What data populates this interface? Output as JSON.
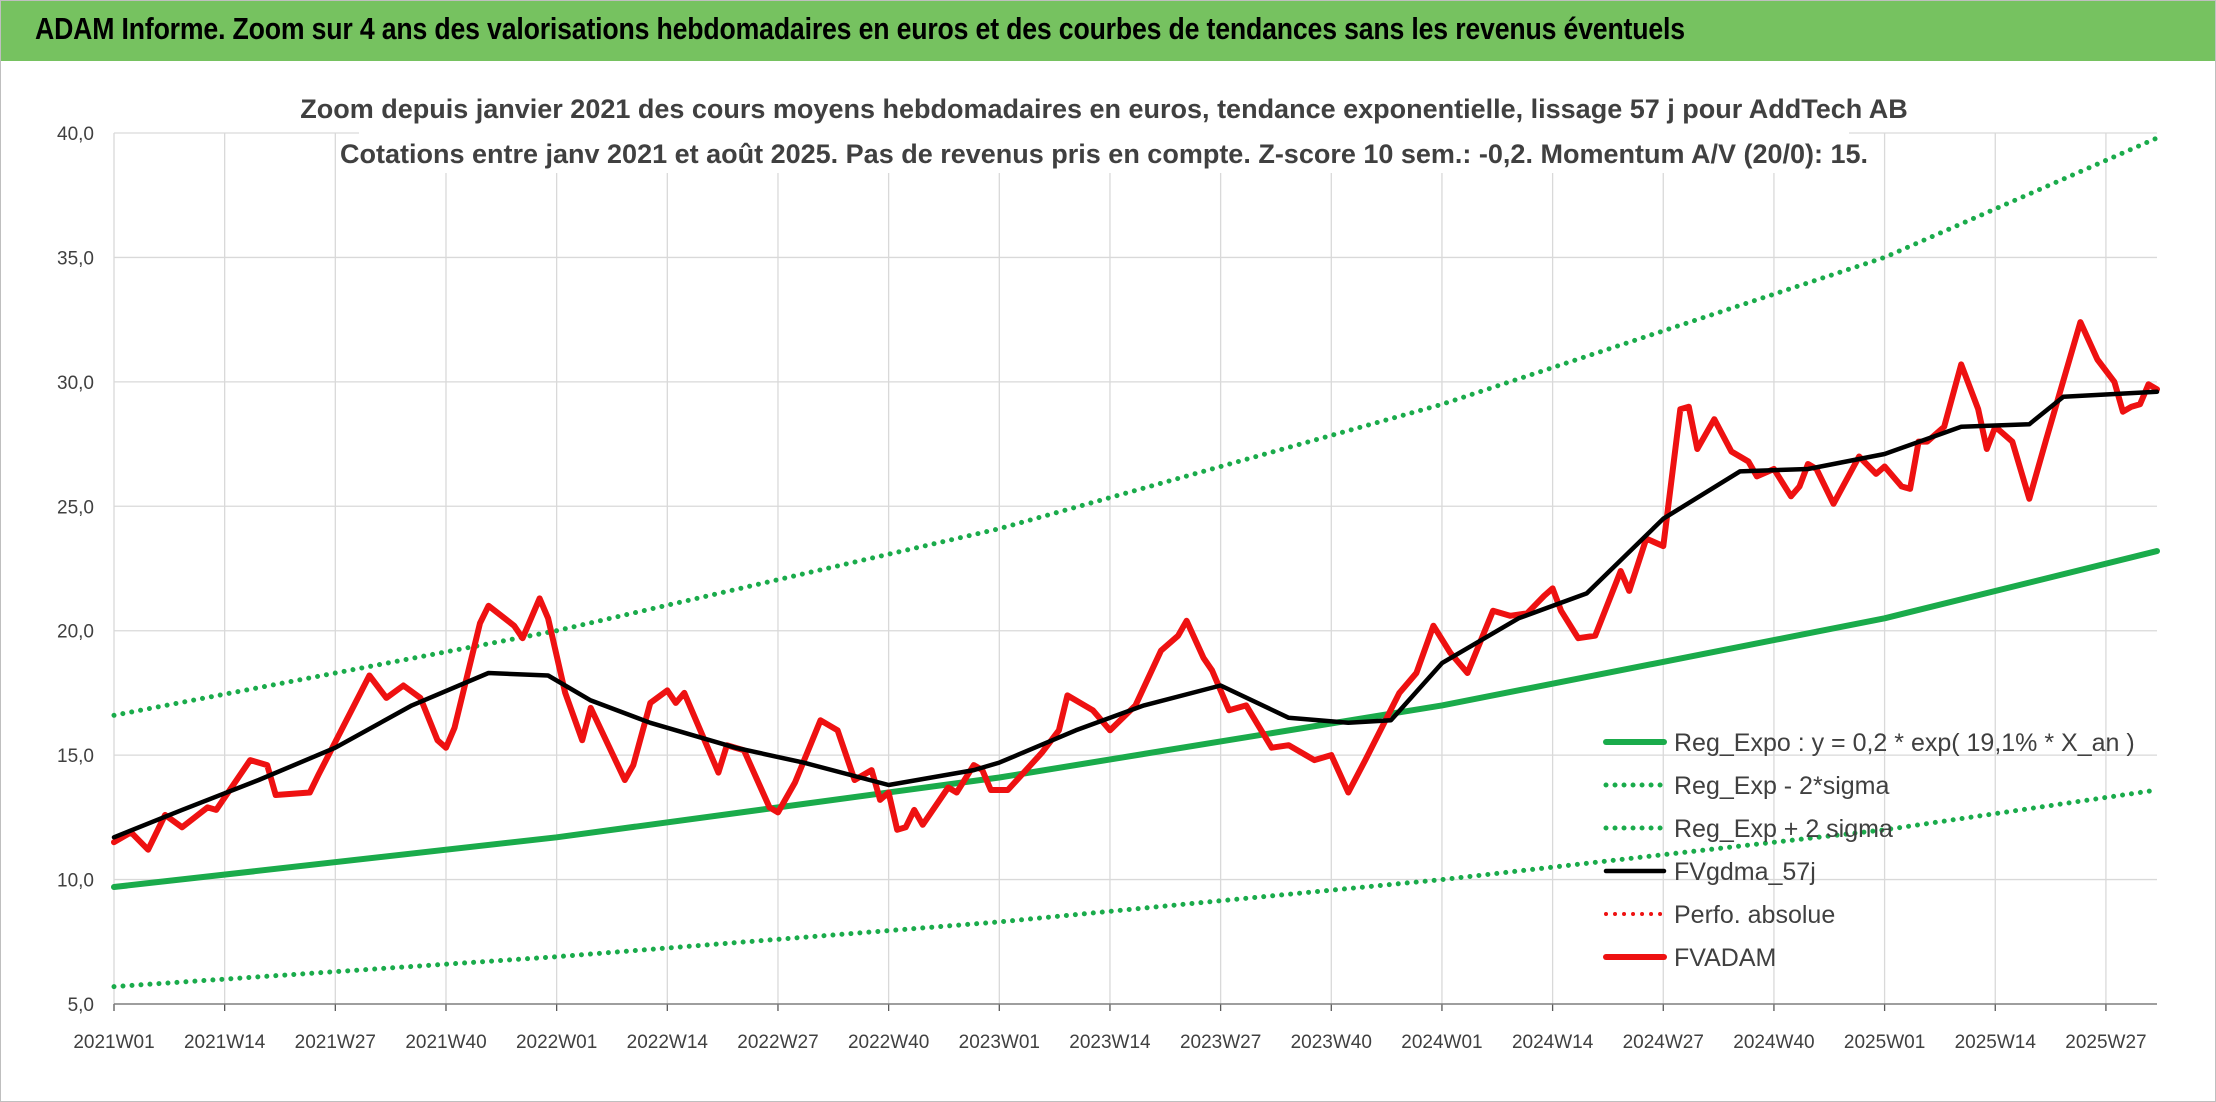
{
  "header": {
    "title": "ADAM Informe. Zoom sur 4 ans des valorisations hebdomadaires en euros et des courbes de tendances sans les revenus éventuels"
  },
  "colors": {
    "banner": "#76c260",
    "trend_green": "#1aab4b",
    "price_red": "#ee1111",
    "average_black": "#000000",
    "grid": "#d9d9d9"
  },
  "chart_data": {
    "type": "line",
    "title": "Zoom depuis janvier 2021 des cours moyens hebdomadaires en euros, tendance exponentielle, lissage 57 j pour AddTech AB",
    "subtitle": "Cotations entre janv 2021 et août 2025. Pas de revenus pris en compte. Z-score 10 sem.: -0,2. Momentum A/V (20/0): 15.",
    "xlabel": "",
    "ylabel": "",
    "ylim": [
      5,
      40
    ],
    "yticks": [
      "5,0",
      "10,0",
      "15,0",
      "20,0",
      "25,0",
      "30,0",
      "35,0",
      "40,0"
    ],
    "ytick_values": [
      5,
      10,
      15,
      20,
      25,
      30,
      35,
      40
    ],
    "xticks": [
      "2021W01",
      "2021W14",
      "2021W27",
      "2021W40",
      "2022W01",
      "2022W14",
      "2022W27",
      "2022W40",
      "2023W01",
      "2023W14",
      "2023W27",
      "2023W40",
      "2024W01",
      "2024W14",
      "2024W27",
      "2024W40",
      "2025W01",
      "2025W14",
      "2025W27"
    ],
    "x_first": "2021W01",
    "x_last": "2025W33",
    "grid": true,
    "legend_position": "bottom-right",
    "series": [
      {
        "name": "Reg_Expo : y = 0,2 * exp( 19,1% *  X_an )",
        "style": "solid",
        "color": "#1aab4b",
        "points": [
          [
            "2021W01",
            9.7
          ],
          [
            "2022W01",
            11.7
          ],
          [
            "2023W01",
            14.1
          ],
          [
            "2024W01",
            17.0
          ],
          [
            "2025W01",
            20.5
          ],
          [
            "2025W33",
            23.2
          ]
        ]
      },
      {
        "name": "Reg_Exp - 2*sigma",
        "style": "dotted",
        "color": "#1aab4b",
        "points": [
          [
            "2021W01",
            5.7
          ],
          [
            "2022W01",
            6.9
          ],
          [
            "2023W01",
            8.3
          ],
          [
            "2024W01",
            10.0
          ],
          [
            "2025W01",
            12.0
          ],
          [
            "2025W33",
            13.6
          ]
        ]
      },
      {
        "name": "Reg_Exp + 2 sigma",
        "style": "dotted",
        "color": "#1aab4b",
        "points": [
          [
            "2021W01",
            16.6
          ],
          [
            "2022W01",
            20.0
          ],
          [
            "2023W01",
            24.1
          ],
          [
            "2024W01",
            29.1
          ],
          [
            "2025W01",
            35.0
          ],
          [
            "2025W33",
            39.8
          ]
        ]
      },
      {
        "name": "FVgdma_57j",
        "style": "solid",
        "color": "#000000",
        "points": [
          [
            "2021W01",
            11.7
          ],
          [
            "2021W09",
            12.8
          ],
          [
            "2021W18",
            14.0
          ],
          [
            "2021W27",
            15.3
          ],
          [
            "2021W36",
            17.0
          ],
          [
            "2021W45",
            18.3
          ],
          [
            "2021W52",
            18.2
          ],
          [
            "2022W05",
            17.2
          ],
          [
            "2022W12",
            16.3
          ],
          [
            "2022W22",
            15.3
          ],
          [
            "2022W30",
            14.7
          ],
          [
            "2022W40",
            13.8
          ],
          [
            "2022W50",
            14.4
          ],
          [
            "2023W01",
            14.7
          ],
          [
            "2023W10",
            16.0
          ],
          [
            "2023W18",
            17.0
          ],
          [
            "2023W27",
            17.8
          ],
          [
            "2023W35",
            16.5
          ],
          [
            "2023W42",
            16.3
          ],
          [
            "2023W47",
            16.4
          ],
          [
            "2024W01",
            18.7
          ],
          [
            "2024W10",
            20.5
          ],
          [
            "2024W18",
            21.5
          ],
          [
            "2024W27",
            24.5
          ],
          [
            "2024W36",
            26.4
          ],
          [
            "2024W44",
            26.5
          ],
          [
            "2025W01",
            27.1
          ],
          [
            "2025W10",
            28.2
          ],
          [
            "2025W18",
            28.3
          ],
          [
            "2025W22",
            29.4
          ],
          [
            "2025W33",
            29.6
          ]
        ]
      },
      {
        "name": "Perfo. absolue",
        "style": "dotted",
        "color": "#ee1111",
        "points": []
      },
      {
        "name": "FVADAM",
        "style": "solid",
        "color": "#ee1111",
        "points": [
          [
            "2021W01",
            11.5
          ],
          [
            "2021W03",
            11.9
          ],
          [
            "2021W05",
            11.2
          ],
          [
            "2021W07",
            12.6
          ],
          [
            "2021W09",
            12.1
          ],
          [
            "2021W12",
            12.9
          ],
          [
            "2021W13",
            12.8
          ],
          [
            "2021W17",
            14.8
          ],
          [
            "2021W19",
            14.6
          ],
          [
            "2021W20",
            13.4
          ],
          [
            "2021W24",
            13.5
          ],
          [
            "2021W25",
            14.2
          ],
          [
            "2021W31",
            18.2
          ],
          [
            "2021W33",
            17.3
          ],
          [
            "2021W35",
            17.8
          ],
          [
            "2021W37",
            17.3
          ],
          [
            "2021W39",
            15.6
          ],
          [
            "2021W40",
            15.3
          ],
          [
            "2021W41",
            16.1
          ],
          [
            "2021W44",
            20.3
          ],
          [
            "2021W45",
            21.0
          ],
          [
            "2021W48",
            20.2
          ],
          [
            "2021W49",
            19.7
          ],
          [
            "2021W51",
            21.3
          ],
          [
            "2021W52",
            20.5
          ],
          [
            "2022W02",
            17.5
          ],
          [
            "2022W04",
            15.6
          ],
          [
            "2022W05",
            16.9
          ],
          [
            "2022W09",
            14.0
          ],
          [
            "2022W10",
            14.6
          ],
          [
            "2022W12",
            17.1
          ],
          [
            "2022W14",
            17.6
          ],
          [
            "2022W15",
            17.1
          ],
          [
            "2022W16",
            17.5
          ],
          [
            "2022W20",
            14.3
          ],
          [
            "2022W21",
            15.4
          ],
          [
            "2022W23",
            15.2
          ],
          [
            "2022W26",
            12.9
          ],
          [
            "2022W27",
            12.7
          ],
          [
            "2022W29",
            13.9
          ],
          [
            "2022W32",
            16.4
          ],
          [
            "2022W34",
            16.0
          ],
          [
            "2022W36",
            14.0
          ],
          [
            "2022W38",
            14.4
          ],
          [
            "2022W39",
            13.2
          ],
          [
            "2022W40",
            13.5
          ],
          [
            "2022W41",
            12.0
          ],
          [
            "2022W42",
            12.1
          ],
          [
            "2022W43",
            12.8
          ],
          [
            "2022W44",
            12.2
          ],
          [
            "2022W47",
            13.7
          ],
          [
            "2022W48",
            13.5
          ],
          [
            "2022W50",
            14.6
          ],
          [
            "2022W51",
            14.4
          ],
          [
            "2022W52",
            13.6
          ],
          [
            "2023W02",
            13.6
          ],
          [
            "2023W06",
            15.1
          ],
          [
            "2023W08",
            16.0
          ],
          [
            "2023W09",
            17.4
          ],
          [
            "2023W12",
            16.8
          ],
          [
            "2023W14",
            16.0
          ],
          [
            "2023W17",
            17.0
          ],
          [
            "2023W20",
            19.2
          ],
          [
            "2023W22",
            19.8
          ],
          [
            "2023W23",
            20.4
          ],
          [
            "2023W25",
            18.9
          ],
          [
            "2023W26",
            18.4
          ],
          [
            "2023W28",
            16.8
          ],
          [
            "2023W30",
            17.0
          ],
          [
            "2023W33",
            15.3
          ],
          [
            "2023W35",
            15.4
          ],
          [
            "2023W37",
            15.0
          ],
          [
            "2023W38",
            14.8
          ],
          [
            "2023W40",
            15.0
          ],
          [
            "2023W42",
            13.5
          ],
          [
            "2023W44",
            14.8
          ],
          [
            "2023W48",
            17.5
          ],
          [
            "2023W50",
            18.3
          ],
          [
            "2023W52",
            20.2
          ],
          [
            "2024W02",
            19.1
          ],
          [
            "2024W04",
            18.3
          ],
          [
            "2024W07",
            20.8
          ],
          [
            "2024W09",
            20.6
          ],
          [
            "2024W11",
            20.7
          ],
          [
            "2024W13",
            21.4
          ],
          [
            "2024W14",
            21.7
          ],
          [
            "2024W15",
            20.8
          ],
          [
            "2024W17",
            19.7
          ],
          [
            "2024W19",
            19.8
          ],
          [
            "2024W22",
            22.4
          ],
          [
            "2024W23",
            21.6
          ],
          [
            "2024W25",
            23.7
          ],
          [
            "2024W27",
            23.4
          ],
          [
            "2024W29",
            28.9
          ],
          [
            "2024W30",
            29.0
          ],
          [
            "2024W31",
            27.3
          ],
          [
            "2024W33",
            28.5
          ],
          [
            "2024W35",
            27.2
          ],
          [
            "2024W37",
            26.8
          ],
          [
            "2024W38",
            26.2
          ],
          [
            "2024W40",
            26.5
          ],
          [
            "2024W42",
            25.4
          ],
          [
            "2024W43",
            25.8
          ],
          [
            "2024W44",
            26.7
          ],
          [
            "2024W45",
            26.5
          ],
          [
            "2024W47",
            25.1
          ],
          [
            "2024W50",
            27.0
          ],
          [
            "2024W52",
            26.3
          ],
          [
            "2025W01",
            26.6
          ],
          [
            "2025W03",
            25.8
          ],
          [
            "2025W04",
            25.7
          ],
          [
            "2025W05",
            27.6
          ],
          [
            "2025W06",
            27.6
          ],
          [
            "2025W08",
            28.2
          ],
          [
            "2025W10",
            30.7
          ],
          [
            "2025W12",
            28.9
          ],
          [
            "2025W13",
            27.3
          ],
          [
            "2025W14",
            28.2
          ],
          [
            "2025W16",
            27.6
          ],
          [
            "2025W18",
            25.3
          ],
          [
            "2025W20",
            27.7
          ],
          [
            "2025W24",
            32.4
          ],
          [
            "2025W26",
            30.9
          ],
          [
            "2025W28",
            30.0
          ],
          [
            "2025W29",
            28.8
          ],
          [
            "2025W30",
            29.0
          ],
          [
            "2025W31",
            29.1
          ],
          [
            "2025W32",
            29.9
          ],
          [
            "2025W33",
            29.7
          ]
        ]
      }
    ]
  }
}
